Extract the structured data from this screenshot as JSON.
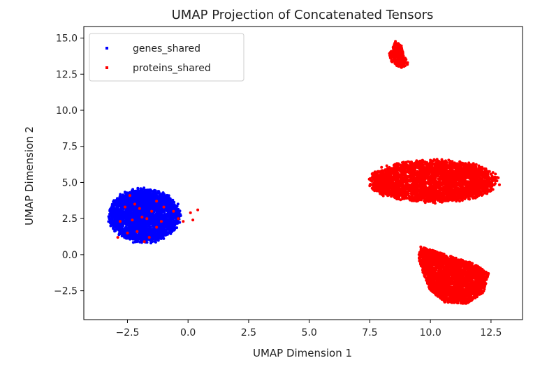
{
  "chart_data": {
    "type": "scatter",
    "title": "UMAP Projection of Concatenated Tensors",
    "xlabel": "UMAP Dimension 1",
    "ylabel": "UMAP Dimension 2",
    "xlim": [
      -4.3,
      13.8
    ],
    "ylim": [
      -4.5,
      15.8
    ],
    "x_ticks": [
      -2.5,
      0.0,
      2.5,
      5.0,
      7.5,
      10.0,
      12.5
    ],
    "y_ticks": [
      -2.5,
      0.0,
      2.5,
      5.0,
      7.5,
      10.0,
      12.5,
      15.0
    ],
    "grid": false,
    "legend_position": "top-left",
    "series": [
      {
        "name": "genes_shared",
        "color": "#0000ff",
        "clusters": [
          {
            "shape": "ellipse",
            "center": [
              -1.8,
              2.7
            ],
            "radius": [
              1.55,
              1.95
            ],
            "count": 2600
          },
          {
            "shape": "points",
            "points": [
              [
                7.8,
                5.3
              ],
              [
                7.9,
                4.9
              ],
              [
                8.3,
                4.8
              ]
            ]
          }
        ]
      },
      {
        "name": "proteins_shared",
        "color": "#ff0000",
        "clusters": [
          {
            "shape": "ellipse",
            "center": [
              10.1,
              5.1
            ],
            "radius": [
              2.8,
              1.55
            ],
            "count": 3200
          },
          {
            "shape": "ellipse",
            "center": [
              8.0,
              4.9
            ],
            "radius": [
              0.35,
              0.6
            ],
            "count": 120
          },
          {
            "shape": "polygon",
            "polygon": [
              [
                9.6,
                0.6
              ],
              [
                10.3,
                0.2
              ],
              [
                11.0,
                -0.2
              ],
              [
                11.8,
                -0.6
              ],
              [
                12.4,
                -1.3
              ],
              [
                12.2,
                -2.6
              ],
              [
                11.5,
                -3.4
              ],
              [
                10.6,
                -3.3
              ],
              [
                10.0,
                -2.5
              ],
              [
                9.7,
                -1.3
              ],
              [
                9.5,
                -0.2
              ]
            ],
            "count": 2400
          },
          {
            "shape": "polygon",
            "polygon": [
              [
                8.55,
                14.8
              ],
              [
                8.8,
                14.5
              ],
              [
                8.9,
                13.8
              ],
              [
                9.1,
                13.2
              ],
              [
                8.8,
                12.9
              ],
              [
                8.4,
                13.3
              ],
              [
                8.3,
                13.9
              ],
              [
                8.5,
                14.5
              ]
            ],
            "count": 300
          },
          {
            "shape": "points",
            "points": [
              [
                -2.2,
                3.5
              ],
              [
                -2.6,
                3.3
              ],
              [
                -2.0,
                3.2
              ],
              [
                -1.3,
                3.7
              ],
              [
                -1.0,
                3.3
              ],
              [
                -1.9,
                2.6
              ],
              [
                -2.3,
                2.4
              ],
              [
                -1.7,
                2.5
              ],
              [
                -1.1,
                2.3
              ],
              [
                -0.4,
                2.5
              ],
              [
                -0.2,
                2.3
              ],
              [
                0.1,
                2.9
              ],
              [
                0.4,
                3.1
              ],
              [
                -2.5,
                1.5
              ],
              [
                -2.1,
                1.6
              ],
              [
                -1.6,
                1.2
              ],
              [
                -1.3,
                1.9
              ],
              [
                -2.9,
                1.2
              ],
              [
                -1.8,
                0.9
              ],
              [
                -0.6,
                3.0
              ],
              [
                -2.8,
                2.3
              ],
              [
                -1.5,
                3.0
              ],
              [
                0.2,
                2.4
              ],
              [
                -2.4,
                4.1
              ]
            ]
          }
        ]
      }
    ]
  }
}
